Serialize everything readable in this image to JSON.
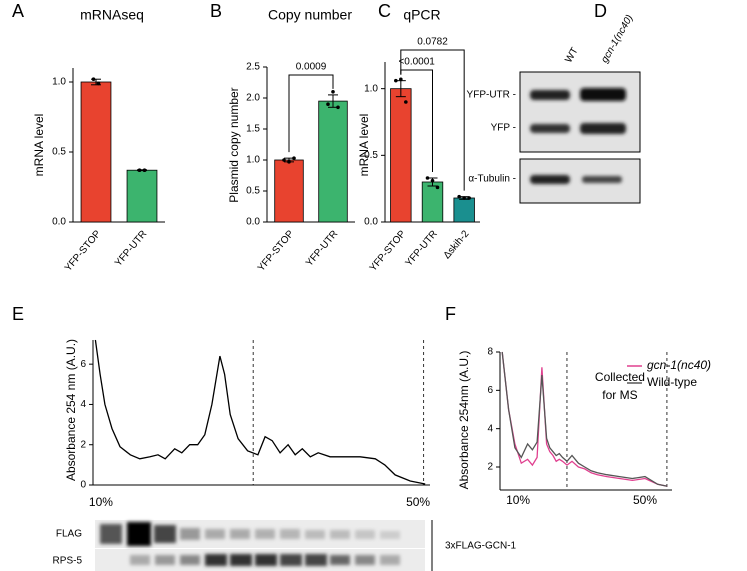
{
  "chart_data": [
    {
      "type": "bar",
      "panel": "A",
      "title": "mRNAseq",
      "y_label": "mRNA level",
      "categories": [
        "YFP-STOP",
        "YFP-UTR"
      ],
      "values": [
        1.0,
        0.37
      ],
      "errors": [
        0.02,
        0.003
      ],
      "points": [
        [
          1.02,
          0.99
        ],
        [
          0.37,
          0.37
        ]
      ],
      "colors": [
        "#e8432f",
        "#3cb46e"
      ],
      "ylim": [
        0,
        1.1
      ],
      "yticks": [
        {
          "value": 0,
          "label": "0.0"
        },
        {
          "value": 0.5,
          "label": "0.5"
        },
        {
          "value": 1,
          "label": "1.0"
        }
      ]
    },
    {
      "type": "bar",
      "panel": "B",
      "title": "Copy number",
      "y_label": "Plasmid copy number",
      "categories": [
        "YFP-STOP",
        "YFP-UTR"
      ],
      "values": [
        1.0,
        1.95
      ],
      "errors": [
        0.03,
        0.1
      ],
      "points": [
        [
          1.0,
          0.97,
          1.03
        ],
        [
          1.9,
          2.1,
          1.85
        ]
      ],
      "colors": [
        "#e8432f",
        "#3cb46e"
      ],
      "annotations": [
        "0.0009"
      ],
      "ylim": [
        0,
        2.5
      ],
      "yticks": [
        {
          "value": 0,
          "label": "0.0"
        },
        {
          "value": 0.5,
          "label": "0.5"
        },
        {
          "value": 1,
          "label": "1.0"
        },
        {
          "value": 1.5,
          "label": "1.5"
        },
        {
          "value": 2,
          "label": "2.0"
        },
        {
          "value": 2.5,
          "label": "2.5"
        }
      ]
    },
    {
      "type": "bar",
      "panel": "C",
      "title": "qPCR",
      "y_label": "mRNA level",
      "categories": [
        "YFP-STOP",
        "YFP-UTR",
        "Δskih-2"
      ],
      "values": [
        1.0,
        0.3,
        0.18
      ],
      "errors": [
        0.06,
        0.03,
        0.01
      ],
      "points": [
        [
          1.06,
          1.07,
          0.9
        ],
        [
          0.33,
          0.31,
          0.26
        ],
        [
          0.19,
          0.18,
          0.18
        ]
      ],
      "colors": [
        "#e8432f",
        "#3cb46e",
        "#1a8f8f"
      ],
      "annotations": [
        "<0.0001",
        "0.0782"
      ],
      "ylim": [
        0,
        1.2
      ],
      "yticks": [
        {
          "value": 0,
          "label": "0.0"
        },
        {
          "value": 0.5,
          "label": "0.5"
        },
        {
          "value": 1,
          "label": "1.0"
        }
      ]
    },
    {
      "type": "line",
      "panel": "E",
      "y_label": "Absorbance 254 nm (A.U.)",
      "color": "#000000",
      "x": [
        9.3,
        9.9,
        10.5,
        11.4,
        12.4,
        13.7,
        14.9,
        16.2,
        17.2,
        18.1,
        19.3,
        20.2,
        21.2,
        22.2,
        23.1,
        24.0,
        25.0,
        25.6,
        26.3,
        27.3,
        28.5,
        29.8,
        30.7,
        31.6,
        32.6,
        33.6,
        34.5,
        35.4,
        36.4,
        37.4,
        38.9,
        40.8,
        42.7,
        44.6,
        45.8,
        47.1,
        49.0,
        50.9
      ],
      "values": [
        7.2,
        5.5,
        4.0,
        2.8,
        1.9,
        1.5,
        1.3,
        1.4,
        1.5,
        1.3,
        1.8,
        1.6,
        2.0,
        2.0,
        2.5,
        4.0,
        6.4,
        5.5,
        3.5,
        2.3,
        1.7,
        1.5,
        2.4,
        2.2,
        1.6,
        2.0,
        1.5,
        1.8,
        1.4,
        1.6,
        1.4,
        1.4,
        1.4,
        1.3,
        1.0,
        0.5,
        0.2,
        0.05
      ],
      "vlines": [
        29.2,
        50.7
      ],
      "xlim": [
        9,
        51.5
      ],
      "xticks": [
        {
          "value": 10,
          "label": "10%"
        },
        {
          "value": 50,
          "label": "50%"
        }
      ],
      "ylim": [
        0,
        7.2
      ],
      "yticks": [
        0,
        2,
        4,
        6
      ]
    },
    {
      "type": "line",
      "panel": "F",
      "y_label": "Absorbance 254nm (A.U.)",
      "x": [
        5,
        7,
        9,
        11,
        13,
        14.5,
        16,
        17.5,
        19,
        20,
        21,
        22,
        23,
        24,
        25.4,
        27,
        29,
        31,
        33,
        35,
        38,
        42,
        46,
        50,
        54,
        57
      ],
      "series": [
        {
          "name": "gcn-1(nc40)",
          "color": "#e0408f",
          "values": [
            8,
            5,
            3.2,
            2.2,
            2.4,
            2.1,
            2.5,
            7.2,
            3.2,
            2.8,
            2.6,
            2.3,
            2.4,
            2.3,
            2.1,
            2.3,
            2.0,
            1.9,
            1.7,
            1.6,
            1.5,
            1.4,
            1.3,
            1.4,
            1.1,
            1.0
          ]
        },
        {
          "name": "Wild-type",
          "color": "#555555",
          "values": [
            8,
            5,
            3.0,
            2.5,
            3.2,
            2.9,
            3.3,
            6.8,
            3.5,
            3.0,
            2.8,
            2.6,
            2.7,
            2.5,
            2.3,
            2.6,
            2.2,
            2.0,
            1.8,
            1.7,
            1.6,
            1.5,
            1.4,
            1.5,
            1.1,
            1.0
          ]
        }
      ],
      "annotation_lines": [
        "Collected",
        "for MS"
      ],
      "vlines": [
        25.4,
        56.9
      ],
      "legend": "top-right",
      "xlim": [
        4.3,
        58.5
      ],
      "xticks": [
        {
          "value": 10,
          "label": "10%"
        },
        {
          "value": 50,
          "label": "50%"
        }
      ],
      "ylim": [
        0.8,
        8
      ],
      "yticks": [
        2,
        4,
        6,
        8
      ]
    }
  ],
  "blot_d": {
    "panel": "D",
    "lanes": [
      "WT",
      "gcn-1(nc40)"
    ],
    "rows": [
      "YFP-UTR -",
      "YFP -",
      "α-Tubulin -"
    ]
  },
  "blot_e": {
    "rows": [
      "FLAG",
      "RPS-5"
    ],
    "label": "3xFLAG-GCN-1"
  }
}
